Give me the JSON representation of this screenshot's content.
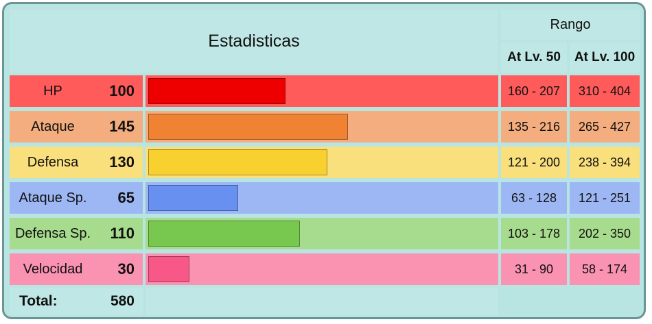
{
  "header": {
    "title": "Estadisticas",
    "range_title": "Rango",
    "level_50": "At Lv. 50",
    "level_100": "At Lv. 100"
  },
  "stats": [
    {
      "label": "HP",
      "value": "100",
      "bar_fraction": 0.396,
      "range_50": "160 - 207",
      "range_100": "310 - 404",
      "row_color": "#ff5b5b",
      "bar_color": "#ee0000"
    },
    {
      "label": "Ataque",
      "value": "145",
      "bar_fraction": 0.575,
      "range_50": "135 - 216",
      "range_100": "265 - 427",
      "row_color": "#f4ad7e",
      "bar_color": "#ef8233"
    },
    {
      "label": "Defensa",
      "value": "130",
      "bar_fraction": 0.515,
      "range_50": "121 - 200",
      "range_100": "238 - 394",
      "row_color": "#fadf7d",
      "bar_color": "#f8d030"
    },
    {
      "label": "Ataque Sp.",
      "value": "65",
      "bar_fraction": 0.258,
      "range_50": "63 - 128",
      "range_100": "121 - 251",
      "row_color": "#9db7f5",
      "bar_color": "#6890f0"
    },
    {
      "label": "Defensa Sp.",
      "value": "110",
      "bar_fraction": 0.436,
      "range_50": "103 - 178",
      "range_100": "202 - 350",
      "row_color": "#a7db8d",
      "bar_color": "#78c850"
    },
    {
      "label": "Velocidad",
      "value": "30",
      "bar_fraction": 0.119,
      "range_50": "31 - 90",
      "range_100": "58 - 174",
      "row_color": "#fa92b2",
      "bar_color": "#f85888"
    }
  ],
  "total": {
    "label": "Total:",
    "value": "580"
  }
}
